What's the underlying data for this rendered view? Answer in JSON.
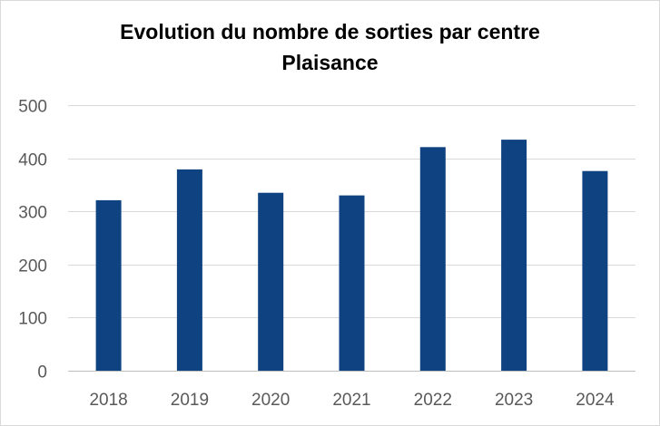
{
  "chart_data": {
    "type": "bar",
    "title": "Evolution du nombre de sorties par centre",
    "subtitle": "Plaisance",
    "xlabel": "",
    "ylabel": "",
    "categories": [
      "2018",
      "2019",
      "2020",
      "2021",
      "2022",
      "2023",
      "2024"
    ],
    "series": [
      {
        "values": [
          321,
          379,
          335,
          330,
          421,
          435,
          376
        ]
      }
    ],
    "ylim": [
      0,
      500
    ],
    "yticks": [
      0,
      100,
      200,
      300,
      400,
      500
    ],
    "ytick_labels": [
      "0",
      "100",
      "200",
      "300",
      "400",
      "500"
    ],
    "grid": true,
    "legend": "none",
    "colors": {
      "bar": "#0f4280",
      "grid": "#d9d9d9",
      "axis": "#bfbfbf",
      "tick_text": "#595959"
    }
  }
}
